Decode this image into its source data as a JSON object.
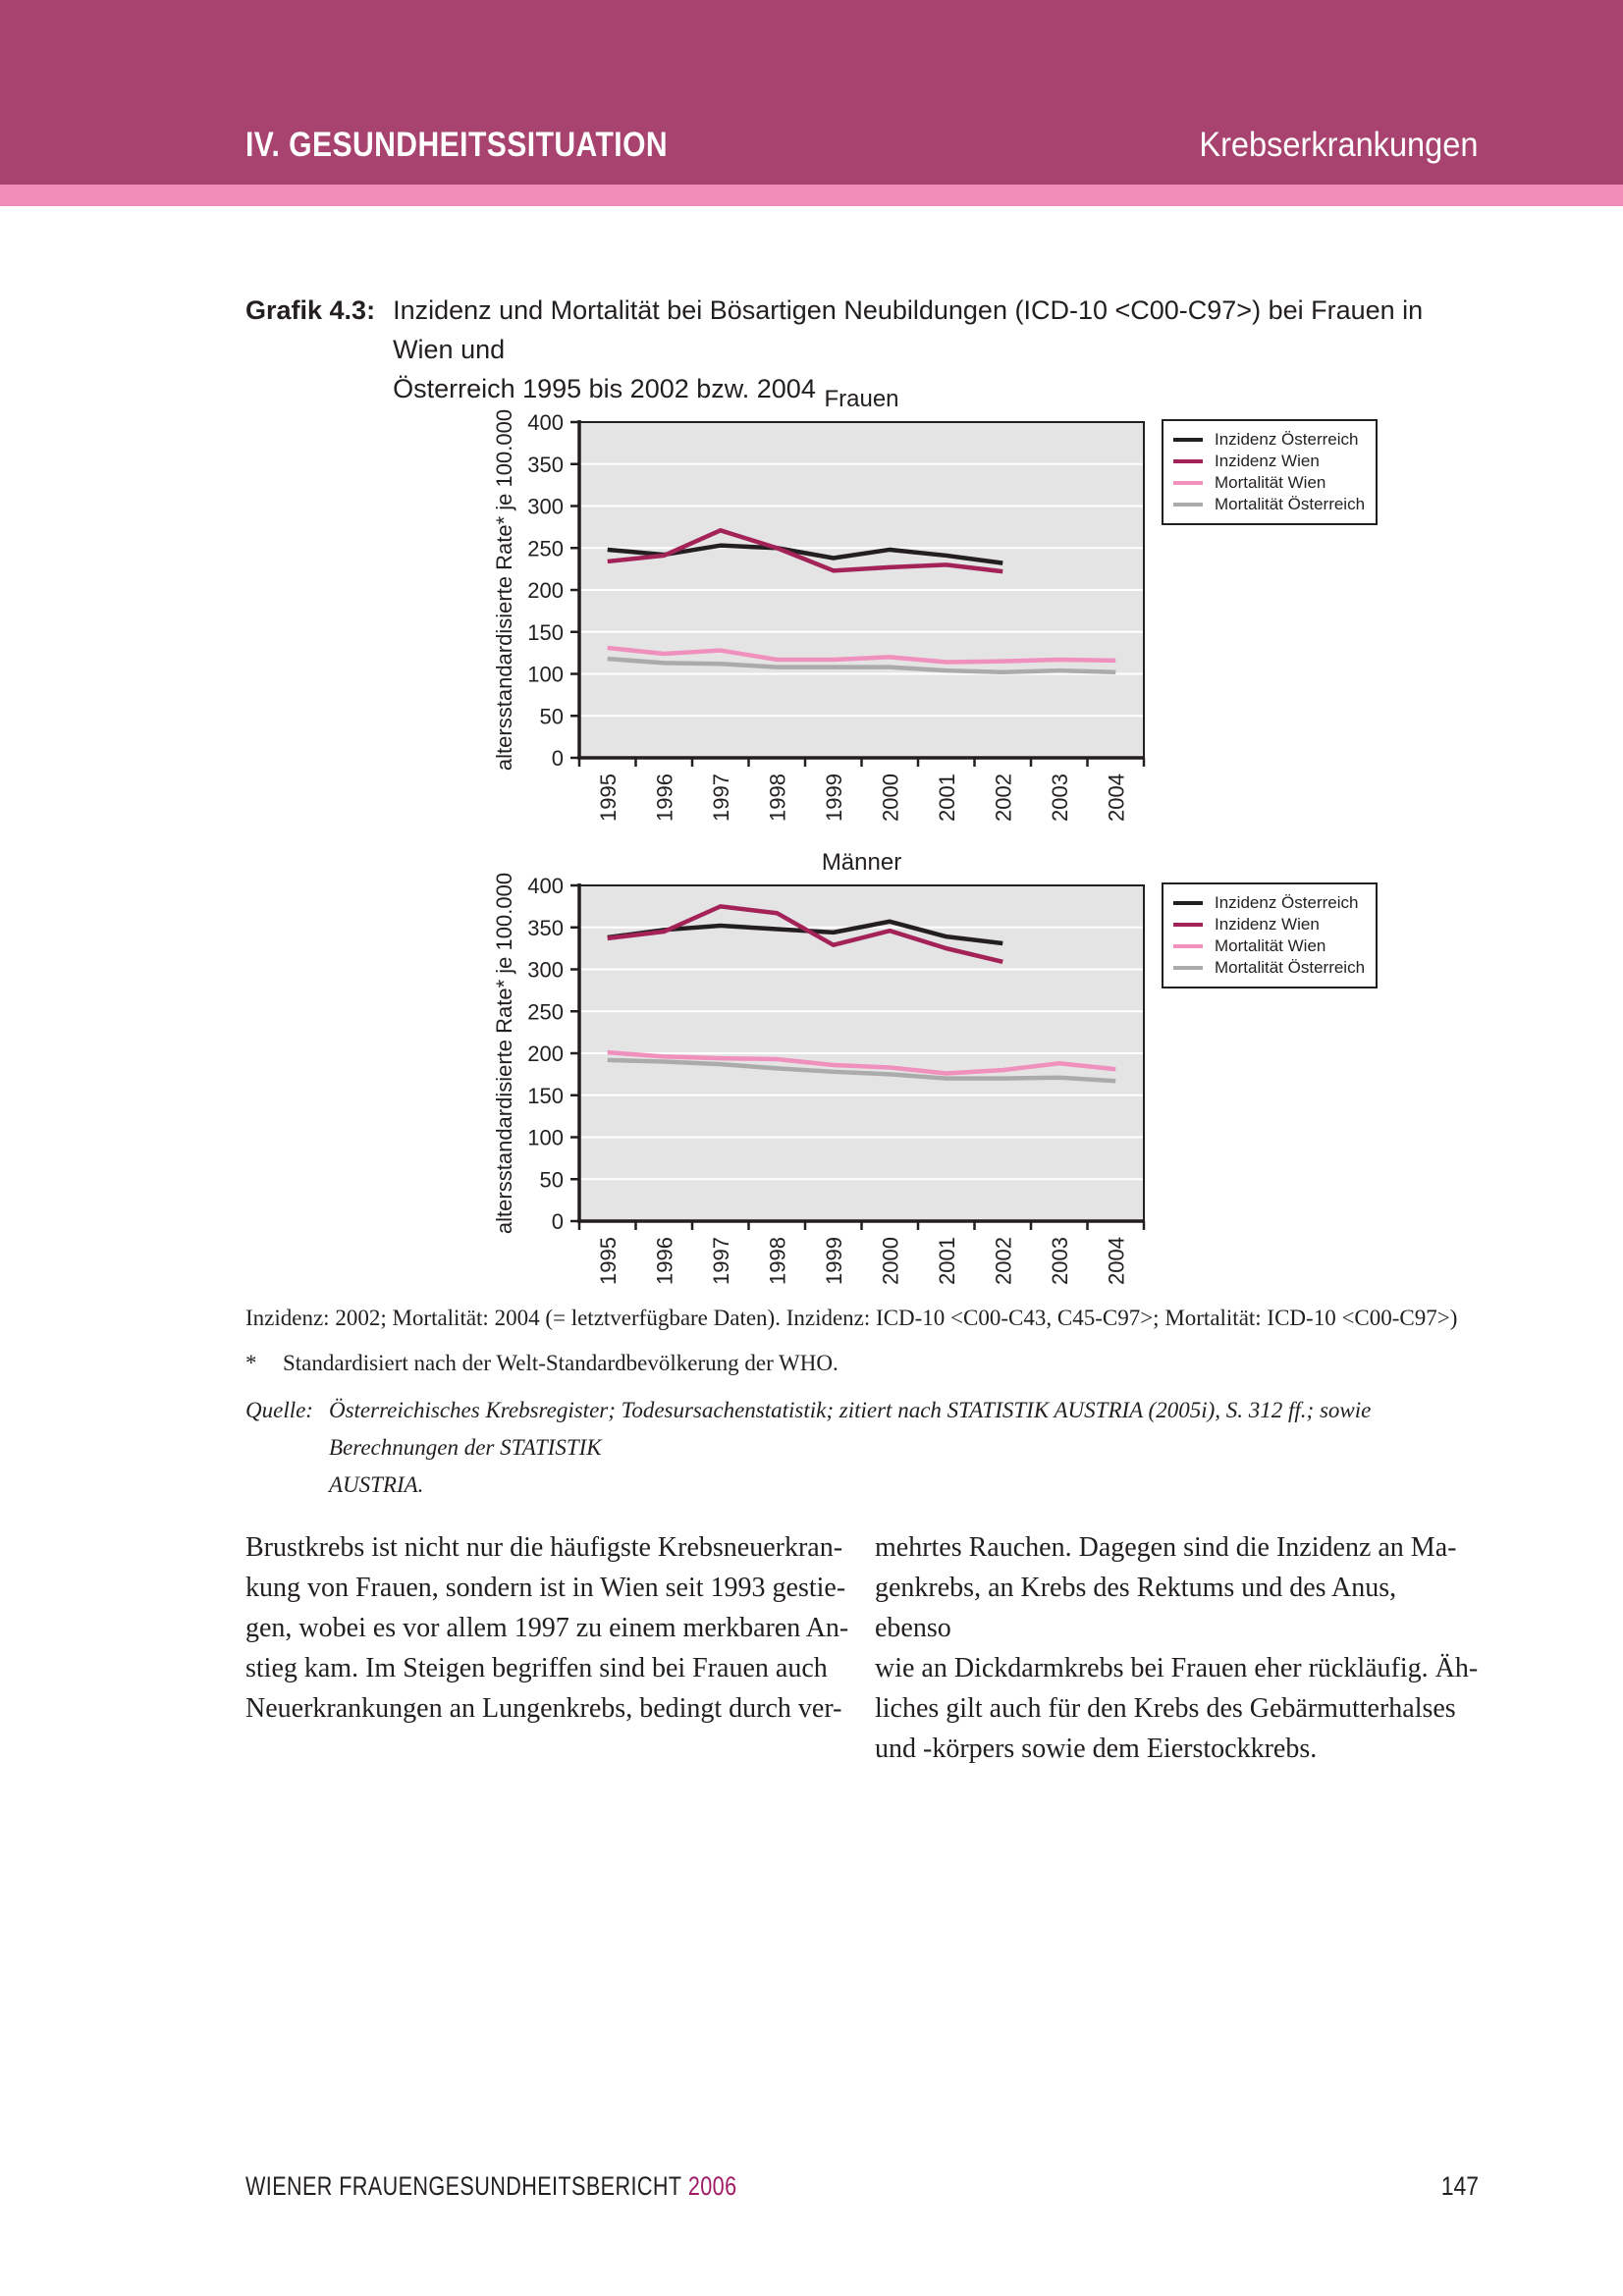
{
  "header": {
    "section": "IV. GESUNDHEITSSITUATION",
    "chapter": "Krebserkrankungen"
  },
  "figure": {
    "label": "Grafik 4.3:",
    "title": "Inzidenz und Mortalität bei Bösartigen Neubildungen (ICD-10 <C00-C97>) bei Frauen in Wien und\nÖsterreich 1995 bis 2002 bzw. 2004"
  },
  "chart_data": [
    {
      "type": "line",
      "title": "Frauen",
      "ylabel": "altersstandardisierte Rate* je 100.000",
      "ylim": [
        0,
        400
      ],
      "ytick_step": 50,
      "grid": "horizontal-white",
      "plot_bg": "#e4e4e5",
      "legend_position": "right",
      "x": [
        "1995",
        "1996",
        "1997",
        "1998",
        "1999",
        "2000",
        "2001",
        "2002",
        "2003",
        "2004"
      ],
      "series": [
        {
          "name": "Inzidenz Österreich",
          "color": "#231f20",
          "values": [
            248,
            242,
            253,
            250,
            238,
            248,
            241,
            232
          ]
        },
        {
          "name": "Inzidenz Wien",
          "color": "#a32359",
          "values": [
            234,
            241,
            271,
            250,
            223,
            227,
            230,
            222
          ]
        },
        {
          "name": "Mortalität Wien",
          "color": "#f090bc",
          "values": [
            131,
            124,
            128,
            117,
            117,
            120,
            114,
            115,
            117,
            116
          ]
        },
        {
          "name": "Mortalität Österreich",
          "color": "#ababab",
          "values": [
            118,
            113,
            112,
            108,
            108,
            108,
            104,
            102,
            104,
            102
          ]
        }
      ]
    },
    {
      "type": "line",
      "title": "Männer",
      "ylabel": "altersstandardisierte Rate* je 100.000",
      "ylim": [
        0,
        400
      ],
      "ytick_step": 50,
      "grid": "horizontal-white",
      "plot_bg": "#e4e4e5",
      "legend_position": "right",
      "x": [
        "1995",
        "1996",
        "1997",
        "1998",
        "1999",
        "2000",
        "2001",
        "2002",
        "2003",
        "2004"
      ],
      "series": [
        {
          "name": "Inzidenz Österreich",
          "color": "#231f20",
          "values": [
            338,
            347,
            352,
            348,
            344,
            357,
            339,
            331
          ]
        },
        {
          "name": "Inzidenz Wien",
          "color": "#a32359",
          "values": [
            337,
            345,
            375,
            367,
            329,
            346,
            325,
            309
          ]
        },
        {
          "name": "Mortalität Wien",
          "color": "#f090bc",
          "values": [
            201,
            196,
            194,
            193,
            186,
            183,
            176,
            180,
            188,
            181
          ]
        },
        {
          "name": "Mortalität Österreich",
          "color": "#ababab",
          "values": [
            192,
            190,
            187,
            182,
            178,
            175,
            170,
            170,
            171,
            167
          ]
        }
      ]
    }
  ],
  "notes": {
    "line1": "Inzidenz: 2002; Mortalität: 2004 (= letztverfügbare Daten). Inzidenz: ICD-10 <C00-C43, C45-C97>; Mortalität: ICD-10 <C00-C97>)",
    "star": "*",
    "star_text": "Standardisiert nach der Welt-Standardbevölkerung der WHO."
  },
  "source": {
    "label": "Quelle:",
    "text": "Österreichisches Krebsregister; Todesursachenstatistik; zitiert nach STATISTIK AUSTRIA (2005i), S. 312 ff.; sowie Berechnungen der STATISTIK\nAUSTRIA."
  },
  "body": {
    "col1": "Brustkrebs ist nicht nur die häufigste Krebsneuerkran-\nkung von Frauen, sondern ist in Wien seit 1993 gestie-\ngen, wobei es vor allem 1997 zu einem merkbaren An-\nstieg kam. Im Steigen begriffen sind bei Frauen auch\nNeuerkrankungen an Lungenkrebs, bedingt durch ver-",
    "col2": "mehrtes Rauchen. Dagegen sind die Inzidenz an Ma-\ngenkrebs, an Krebs des Rektums und des Anus, ebenso\nwie an Dickdarmkrebs bei Frauen eher rückläufig. Äh-\nliches gilt auch für den Krebs des Gebärmutterhalses\nund -körpers sowie dem Eierstockkrebs.",
    "col1_name": "body-column-left",
    "col2_name": "body-column-right"
  },
  "footer": {
    "report": "WIENER FRAUENGESUNDHEITSBERICHT",
    "year": "2006",
    "page": "147"
  },
  "colors": {
    "header_bg": "#a8436f",
    "header_stripe": "#f18db9",
    "text": "#231f20",
    "chart_bg": "#e4e4e5",
    "incidence_austria": "#231f20",
    "incidence_vienna": "#a32359",
    "mortality_vienna": "#f090bc",
    "mortality_austria": "#ababab",
    "footer_year": "#a01a66"
  }
}
